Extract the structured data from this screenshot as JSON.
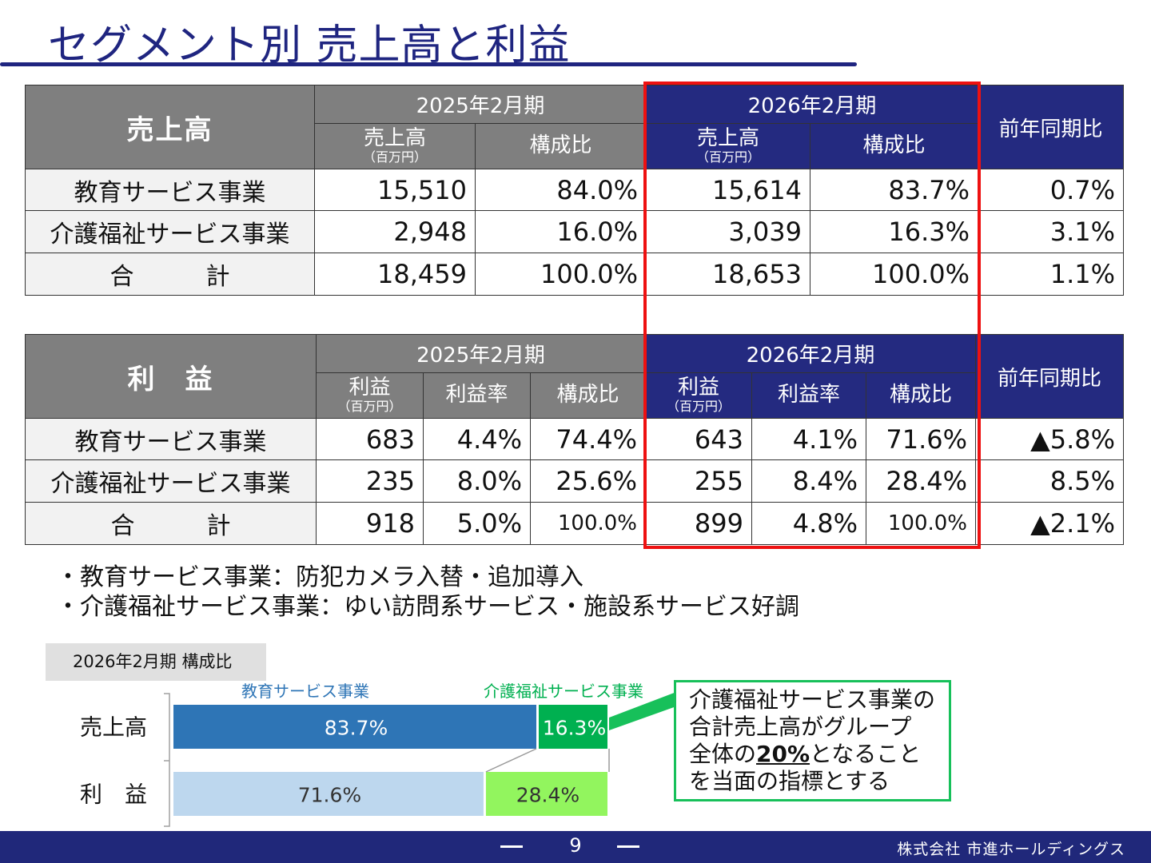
{
  "title": "セグメント別 売上高と利益",
  "sales_table": {
    "label": "売上高",
    "fy2025": "2025年2月期",
    "fy2026": "2026年2月期",
    "col_amount": "売上高",
    "col_unit": "（百万円）",
    "col_share": "構成比",
    "col_yoy": "前年同期比",
    "rows": [
      {
        "name": "教育サービス事業",
        "a25": "15,510",
        "s25": "84.0%",
        "a26": "15,614",
        "s26": "83.7%",
        "yoy": "0.7%"
      },
      {
        "name": "介護福祉サービス事業",
        "a25": "2,948",
        "s25": "16.0%",
        "a26": "3,039",
        "s26": "16.3%",
        "yoy": "3.1%"
      },
      {
        "name": "合　　　計",
        "a25": "18,459",
        "s25": "100.0%",
        "a26": "18,653",
        "s26": "100.0%",
        "yoy": "1.1%"
      }
    ]
  },
  "profit_table": {
    "label": "利　益",
    "fy2025": "2025年2月期",
    "fy2026": "2026年2月期",
    "col_amount": "利益",
    "col_unit": "（百万円）",
    "col_rate": "利益率",
    "col_share": "構成比",
    "col_yoy": "前年同期比",
    "rows": [
      {
        "name": "教育サービス事業",
        "p25": "683",
        "r25": "4.4%",
        "s25": "74.4%",
        "p26": "643",
        "r26": "4.1%",
        "s26": "71.6%",
        "yoy": "▲5.8%"
      },
      {
        "name": "介護福祉サービス事業",
        "p25": "235",
        "r25": "8.0%",
        "s25": "25.6%",
        "p26": "255",
        "r26": "8.4%",
        "s26": "28.4%",
        "yoy": "8.5%"
      },
      {
        "name": "合　　　計",
        "p25": "918",
        "r25": "5.0%",
        "s25": "100.0%",
        "p26": "899",
        "r26": "4.8%",
        "s26": "100.0%",
        "yoy": "▲2.1%"
      }
    ]
  },
  "bullets": [
    "・教育サービス事業：防犯カメラ入替・追加導入",
    "・介護福祉サービス事業：ゆい訪問系サービス・施設系サービス好調"
  ],
  "chart_label": "2026年2月期 構成比",
  "chart_data": {
    "type": "bar",
    "stacked": true,
    "orientation": "horizontal",
    "categories": [
      "売上高",
      "利　益"
    ],
    "series": [
      {
        "name": "教育サービス事業",
        "values": [
          83.7,
          71.6
        ],
        "labels": [
          "83.7%",
          "71.6%"
        ],
        "colors": [
          "#2e75b6",
          "#bdd7ee"
        ]
      },
      {
        "name": "介護福祉サービス事業",
        "values": [
          16.3,
          28.4
        ],
        "labels": [
          "16.3%",
          "28.4%"
        ],
        "colors": [
          "#00b050",
          "#92f55e"
        ]
      }
    ],
    "legend_colors": [
      "#2e75b6",
      "#00b050"
    ]
  },
  "note": {
    "line1": "介護福祉サービス事業の",
    "line2": "合計売上高がグループ",
    "line3_pre": "全体の",
    "line3_bold": "20%",
    "line3_post": "となること",
    "line4": "を当面の指標とする"
  },
  "footer": {
    "page": "9",
    "company": "株式会社 市進ホールディングス"
  }
}
